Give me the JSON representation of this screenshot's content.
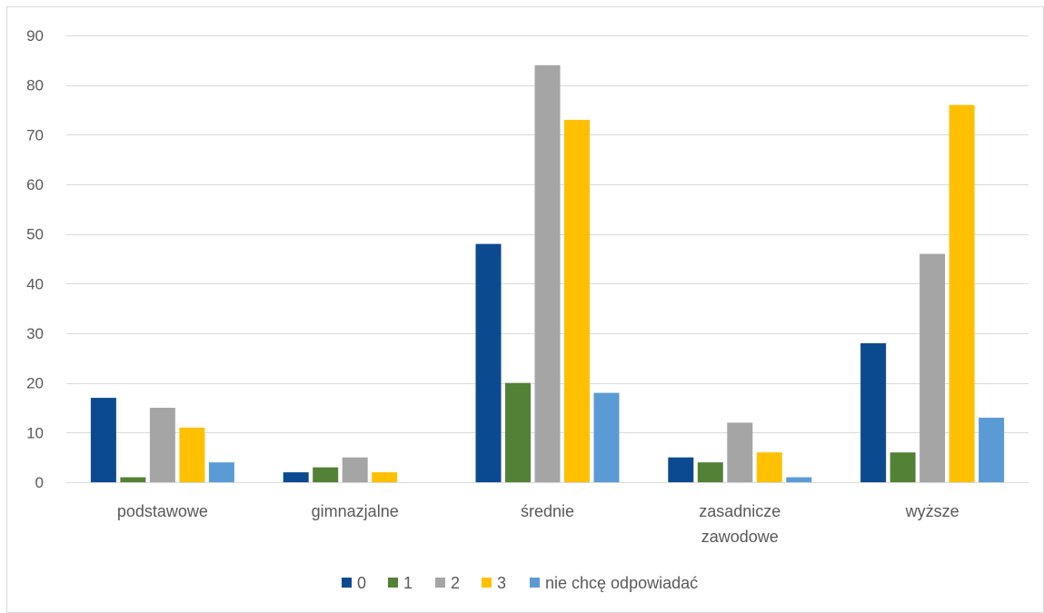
{
  "chart_data": {
    "type": "bar",
    "title": "",
    "xlabel": "",
    "ylabel": "",
    "ylim": [
      0,
      90
    ],
    "yticks": [
      0,
      10,
      20,
      30,
      40,
      50,
      60,
      70,
      80,
      90
    ],
    "grid": true,
    "legend_position": "bottom",
    "categories": [
      [
        "podstawowe"
      ],
      [
        "gimnazjalne"
      ],
      [
        "średnie"
      ],
      [
        "zasadnicze",
        "zawodowe"
      ],
      [
        "wyższe"
      ]
    ],
    "series": [
      {
        "name": "0",
        "color": "#0B4A8F",
        "values": [
          17,
          2,
          48,
          5,
          28
        ]
      },
      {
        "name": "1",
        "color": "#538135",
        "values": [
          1,
          3,
          20,
          4,
          6
        ]
      },
      {
        "name": "2",
        "color": "#A5A5A5",
        "values": [
          15,
          5,
          84,
          12,
          46
        ]
      },
      {
        "name": "3",
        "color": "#FFC000",
        "values": [
          11,
          2,
          73,
          6,
          76
        ]
      },
      {
        "name": "nie chcę odpowiadać",
        "color": "#5B9BD5",
        "values": [
          4,
          0,
          18,
          1,
          13
        ]
      }
    ]
  }
}
